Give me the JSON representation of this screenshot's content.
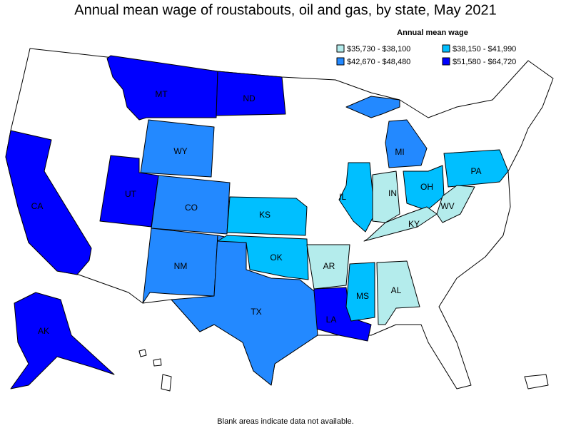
{
  "title": "Annual mean wage of roustabouts, oil and gas, by state, May 2021",
  "legend": {
    "title": "Annual mean wage",
    "bins": [
      {
        "label": "$35,730 - $38,100",
        "color": "#b4ecec",
        "states": [
          "IN",
          "KY",
          "WV",
          "AR",
          "AL"
        ]
      },
      {
        "label": "$38,150 - $41,990",
        "color": "#00bfff",
        "states": [
          "IL",
          "OH",
          "PA",
          "KS",
          "OK",
          "MS"
        ]
      },
      {
        "label": "$42,670 - $48,480",
        "color": "#2389ff",
        "states": [
          "WY",
          "CO",
          "NM",
          "TX",
          "MI"
        ]
      },
      {
        "label": "$51,580 - $64,720",
        "color": "#0000ff",
        "states": [
          "MT",
          "ND",
          "UT",
          "CA",
          "LA",
          "AK"
        ]
      }
    ]
  },
  "footnote": "Blank areas indicate data not available."
}
